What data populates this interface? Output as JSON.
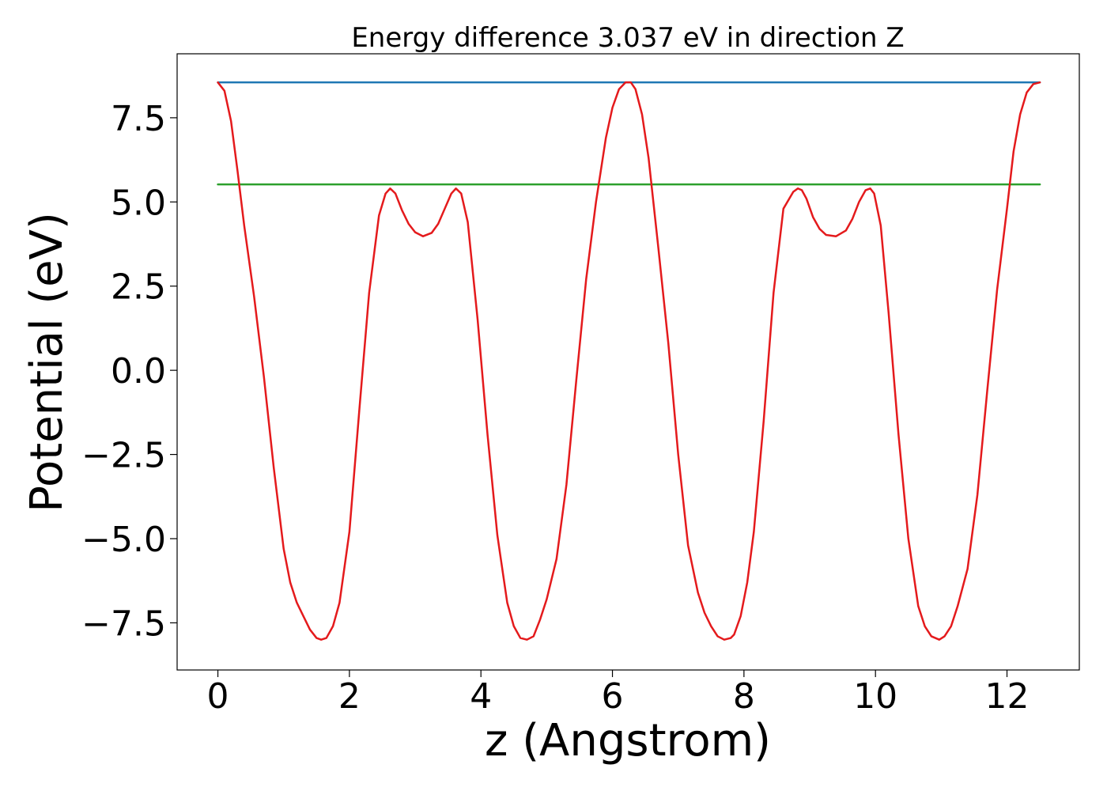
{
  "chart_data": {
    "type": "line",
    "title": "Energy difference 3.037 eV in direction Z",
    "xlabel": "z (Angstrom)",
    "ylabel": "Potential (eV)",
    "xlim": [
      -0.62,
      13.1
    ],
    "ylim": [
      -8.9,
      9.4
    ],
    "x_ticks": [
      0,
      2,
      4,
      6,
      8,
      10,
      12
    ],
    "x_tick_labels": [
      "0",
      "2",
      "4",
      "6",
      "8",
      "10",
      "12"
    ],
    "y_ticks": [
      -7.5,
      -5.0,
      -2.5,
      0.0,
      2.5,
      5.0,
      7.5
    ],
    "y_tick_labels": [
      "−7.5",
      "−5.0",
      "−2.5",
      "0.0",
      "2.5",
      "5.0",
      "7.5"
    ],
    "grid": false,
    "series": [
      {
        "color": "#1f77b4",
        "x": [
          0,
          12.5
        ],
        "y": [
          8.55,
          8.55
        ]
      },
      {
        "color": "#2ca02c",
        "x": [
          0,
          12.5
        ],
        "y": [
          5.52,
          5.52
        ]
      },
      {
        "color": "#e41a1c",
        "x": [
          0,
          0.1,
          0.2,
          0.3,
          0.4,
          0.55,
          0.7,
          0.85,
          1.0,
          1.1,
          1.2,
          1.3,
          1.4,
          1.5,
          1.57,
          1.65,
          1.75,
          1.85,
          2.0,
          2.15,
          2.3,
          2.45,
          2.55,
          2.62,
          2.7,
          2.8,
          2.9,
          3.0,
          3.12,
          3.25,
          3.35,
          3.45,
          3.55,
          3.62,
          3.7,
          3.8,
          3.95,
          4.1,
          4.25,
          4.4,
          4.5,
          4.6,
          4.7,
          4.8,
          4.9,
          5.0,
          5.15,
          5.3,
          5.45,
          5.6,
          5.75,
          5.9,
          6.0,
          6.1,
          6.2,
          6.28,
          6.35,
          6.45,
          6.55,
          6.7,
          6.85,
          7.0,
          7.15,
          7.3,
          7.4,
          7.5,
          7.6,
          7.7,
          7.8,
          7.85,
          7.95,
          8.05,
          8.15,
          8.3,
          8.45,
          8.6,
          8.75,
          8.82,
          8.88,
          8.95,
          9.05,
          9.15,
          9.25,
          9.4,
          9.55,
          9.65,
          9.75,
          9.85,
          9.92,
          9.98,
          10.08,
          10.2,
          10.35,
          10.5,
          10.65,
          10.75,
          10.85,
          10.97,
          11.05,
          11.15,
          11.25,
          11.4,
          11.55,
          11.7,
          11.85,
          12.0,
          12.1,
          12.2,
          12.3,
          12.4,
          12.5
        ],
        "y": [
          8.55,
          8.3,
          7.4,
          5.9,
          4.3,
          2.2,
          -0.2,
          -2.9,
          -5.3,
          -6.3,
          -6.9,
          -7.3,
          -7.7,
          -7.95,
          -8.0,
          -7.95,
          -7.6,
          -6.9,
          -4.8,
          -1.2,
          2.3,
          4.6,
          5.25,
          5.4,
          5.25,
          4.75,
          4.35,
          4.1,
          3.98,
          4.08,
          4.35,
          4.8,
          5.25,
          5.4,
          5.25,
          4.4,
          1.5,
          -1.9,
          -4.9,
          -6.9,
          -7.6,
          -7.95,
          -8.0,
          -7.9,
          -7.4,
          -6.8,
          -5.6,
          -3.4,
          -0.3,
          2.7,
          5.0,
          6.9,
          7.8,
          8.35,
          8.55,
          8.55,
          8.35,
          7.6,
          6.3,
          3.6,
          0.8,
          -2.5,
          -5.2,
          -6.6,
          -7.2,
          -7.6,
          -7.9,
          -8.0,
          -7.95,
          -7.85,
          -7.3,
          -6.3,
          -4.8,
          -1.5,
          2.3,
          4.8,
          5.3,
          5.4,
          5.35,
          5.1,
          4.55,
          4.2,
          4.02,
          3.98,
          4.15,
          4.5,
          5.0,
          5.35,
          5.4,
          5.25,
          4.3,
          1.7,
          -1.9,
          -5.0,
          -7.0,
          -7.6,
          -7.9,
          -8.0,
          -7.9,
          -7.6,
          -7.0,
          -5.9,
          -3.7,
          -0.6,
          2.4,
          4.8,
          6.5,
          7.6,
          8.25,
          8.5,
          8.55
        ]
      }
    ]
  }
}
